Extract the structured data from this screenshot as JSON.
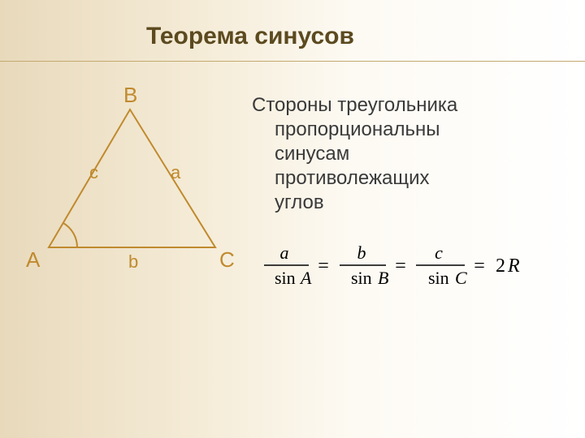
{
  "title": "Теорема синусов",
  "body": {
    "line1": "Стороны треугольника",
    "line2": "пропорциональны",
    "line3": "синусам",
    "line4": "противолежащих",
    "line5": "углов"
  },
  "triangle": {
    "vertices": {
      "A": "A",
      "B": "B",
      "C": "C"
    },
    "sides": {
      "a": "a",
      "b": "b",
      "c": "c"
    },
    "points": {
      "A": [
        40,
        195
      ],
      "B": [
        140,
        25
      ],
      "C": [
        245,
        195
      ]
    },
    "stroke_color": "#c08a2e",
    "stroke_width": 2,
    "label_color": "#c08a2e",
    "vertex_fontsize": 26,
    "side_fontsize": 22,
    "arc": {
      "r": 35
    }
  },
  "formula": {
    "num_a": "a",
    "den_a_prefix": "sin",
    "den_a_var": "A",
    "num_b": "b",
    "den_b_prefix": "sin",
    "den_b_var": "B",
    "num_c": "c",
    "den_c_prefix": "sin",
    "den_c_var": "C",
    "rhs_eq": "=",
    "rhs_num": "2",
    "rhs_var": "R",
    "color": "#000000",
    "fraction_line_width": 1.5,
    "fontsize_num": 22,
    "fontsize_den": 22
  },
  "colors": {
    "title_color": "#5c4a1f",
    "divider_color": "#c2a96f",
    "body_text_color": "#3a3a3a",
    "bg_gradient_from": "#e8d9bb",
    "bg_gradient_to": "#ffffff"
  }
}
